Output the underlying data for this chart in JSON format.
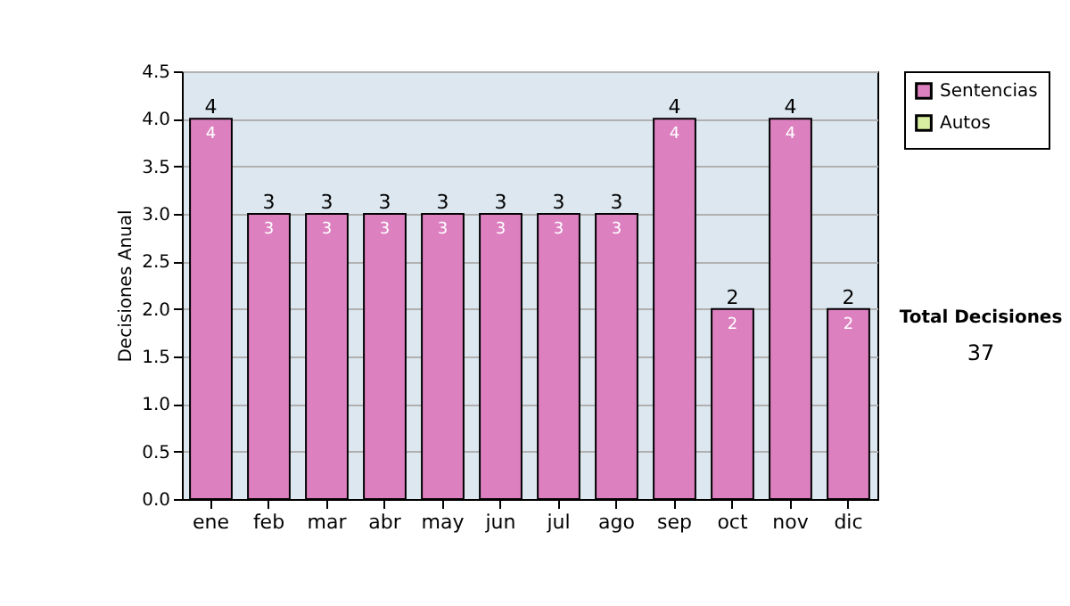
{
  "chart_data": {
    "type": "bar",
    "ylabel": "Decisiones Anual",
    "categories": [
      "ene",
      "feb",
      "mar",
      "abr",
      "may",
      "jun",
      "jul",
      "ago",
      "sep",
      "oct",
      "nov",
      "dic"
    ],
    "series": [
      {
        "name": "Sentencias",
        "color": "#dd80c0",
        "values": [
          4,
          3,
          3,
          3,
          3,
          3,
          3,
          3,
          4,
          2,
          4,
          2
        ]
      },
      {
        "name": "Autos",
        "color": "#d8eea0",
        "values": [
          null,
          null,
          null,
          null,
          null,
          null,
          null,
          null,
          null,
          null,
          null,
          null
        ]
      }
    ],
    "stacked": true,
    "data_labels": true,
    "totals": [
      "4",
      "3",
      "3",
      "3",
      "3",
      "3",
      "3",
      "3",
      "4",
      "2",
      "4",
      "2"
    ],
    "ylim": [
      0,
      4.5
    ],
    "yticks": [
      {
        "value": 0,
        "label": "0.0"
      },
      {
        "value": 0.5,
        "label": "0.5"
      },
      {
        "value": 1,
        "label": "1.0"
      },
      {
        "value": 1.5,
        "label": "1.5"
      },
      {
        "value": 2,
        "label": "2.0"
      },
      {
        "value": 2.5,
        "label": "2.5"
      },
      {
        "value": 3,
        "label": "3.0"
      },
      {
        "value": 3.5,
        "label": "3.5"
      },
      {
        "value": 4,
        "label": "4.0"
      },
      {
        "value": 4.5,
        "label": "4.5"
      }
    ],
    "grid": "y",
    "legend": "right",
    "annotations": [
      "Total Decisiones",
      "37"
    ]
  }
}
